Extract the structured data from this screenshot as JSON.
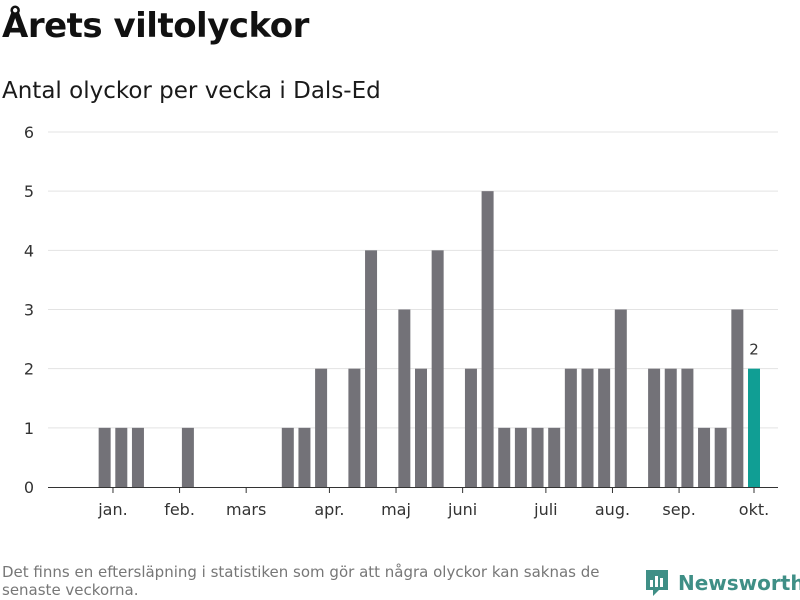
{
  "header": {
    "title": "Årets viltolyckor",
    "subtitle": "Antal olyckor per vecka i Dals-Ed"
  },
  "footer": {
    "note": "Det finns en eftersläpning i statistiken som gör att några olyckor kan saknas de senaste veckorna.",
    "brand": "Newsworthy",
    "brand_icon": "newsworthy-logo-icon"
  },
  "colors": {
    "bar": "#737278",
    "highlight": "#109e94",
    "grid": "#e3e3e3",
    "axis": "#333333",
    "text": "#333333",
    "brand": "#3f8f86"
  },
  "chart_data": {
    "type": "bar",
    "title": "Antal olyckor per vecka i Dals-Ed",
    "xlabel": "",
    "ylabel": "",
    "ylim": [
      0,
      6
    ],
    "yticks": [
      0,
      1,
      2,
      3,
      4,
      5,
      6
    ],
    "grid": true,
    "legend": "none",
    "weeks": [
      1,
      2,
      3,
      4,
      5,
      6,
      7,
      8,
      9,
      10,
      11,
      12,
      13,
      14,
      15,
      16,
      17,
      18,
      19,
      20,
      21,
      22,
      23,
      24,
      25,
      26,
      27,
      28,
      29,
      30,
      31,
      32,
      33,
      34,
      35,
      36,
      37,
      38,
      39,
      40,
      41
    ],
    "values": [
      0,
      1,
      1,
      1,
      0,
      0,
      1,
      0,
      0,
      0,
      0,
      0,
      1,
      1,
      2,
      0,
      2,
      4,
      0,
      3,
      2,
      4,
      0,
      2,
      5,
      1,
      1,
      1,
      1,
      2,
      2,
      2,
      3,
      0,
      2,
      2,
      2,
      1,
      1,
      3,
      2
    ],
    "highlight_index": 40,
    "data_labels": [
      {
        "index": 40,
        "text": "2"
      }
    ],
    "months": [
      {
        "label": "jan.",
        "week": 2.5
      },
      {
        "label": "feb.",
        "week": 6.5
      },
      {
        "label": "mars",
        "week": 10.5
      },
      {
        "label": "apr.",
        "week": 15.5
      },
      {
        "label": "maj",
        "week": 19.5
      },
      {
        "label": "juni",
        "week": 23.5
      },
      {
        "label": "juli",
        "week": 28.5
      },
      {
        "label": "aug.",
        "week": 32.5
      },
      {
        "label": "sep.",
        "week": 36.5
      },
      {
        "label": "okt.",
        "week": 41
      }
    ]
  }
}
